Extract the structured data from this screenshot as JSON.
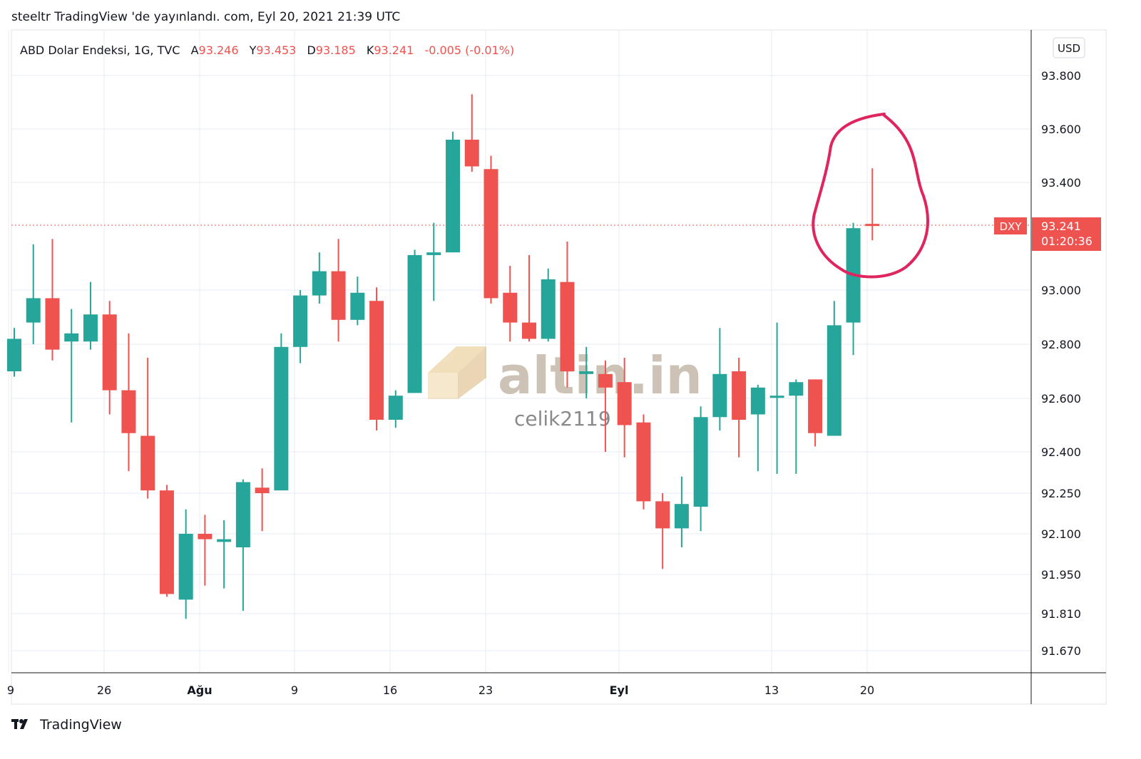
{
  "header": {
    "published": "steeltr TradingView 'de yayınlandı. com, Eyl 20, 2021 21:39 UTC"
  },
  "legend": {
    "symbol": "ABD Dolar Endeksi, 1G, TVC",
    "open_label": "A",
    "open": "93.246",
    "high_label": "Y",
    "high": "93.453",
    "low_label": "D",
    "low": "93.185",
    "close_label": "K",
    "close": "93.241",
    "change": "-0.005 (-0.01%)"
  },
  "currency_button": "USD",
  "price_tag": {
    "symbol": "DXY",
    "price": "93.241",
    "countdown": "01:20:36"
  },
  "watermark": {
    "logo": "altin.in",
    "user": "celik2119"
  },
  "footer": {
    "brand": "TradingView"
  },
  "colors": {
    "up": "#26a69a",
    "down": "#ef5350",
    "annotation": "#e0245e",
    "grid": "#e6eef4"
  },
  "chart_data": {
    "type": "candlestick",
    "title": "ABD Dolar Endeksi, 1G, TVC",
    "y_ticks": [
      93.8,
      93.6,
      93.4,
      93.0,
      92.8,
      92.6,
      92.4,
      92.25,
      92.1,
      91.95,
      91.81,
      91.67
    ],
    "y_tick_labels": [
      "93.800",
      "93.600",
      "93.400",
      "93.000",
      "92.800",
      "92.600",
      "92.400",
      "92.250",
      "92.100",
      "91.950",
      "91.810",
      "91.670"
    ],
    "x_tick_labels": [
      "9",
      "26",
      "Ağu",
      "9",
      "16",
      "23",
      "Eyl",
      "13",
      "20"
    ],
    "last_price": 93.241,
    "ohlc": [
      [
        "2021-07-19",
        92.7,
        92.86,
        92.68,
        92.82
      ],
      [
        "2021-07-20",
        92.88,
        93.17,
        92.8,
        92.97
      ],
      [
        "2021-07-21",
        92.97,
        93.19,
        92.74,
        92.78
      ],
      [
        "2021-07-22",
        92.81,
        92.93,
        92.51,
        92.84
      ],
      [
        "2021-07-23",
        92.81,
        93.03,
        92.78,
        92.91
      ],
      [
        "2021-07-26",
        92.91,
        92.96,
        92.54,
        92.63
      ],
      [
        "2021-07-27",
        92.63,
        92.84,
        92.33,
        92.47
      ],
      [
        "2021-07-28",
        92.46,
        92.75,
        92.23,
        92.26
      ],
      [
        "2021-07-29",
        92.26,
        92.28,
        91.87,
        91.88
      ],
      [
        "2021-07-30",
        91.86,
        92.19,
        91.79,
        92.1
      ],
      [
        "2021-08-02",
        92.1,
        92.17,
        91.91,
        92.08
      ],
      [
        "2021-08-03",
        92.07,
        92.15,
        91.9,
        92.08
      ],
      [
        "2021-08-04",
        92.05,
        92.3,
        91.82,
        92.29
      ],
      [
        "2021-08-05",
        92.27,
        92.34,
        92.11,
        92.25
      ],
      [
        "2021-08-06",
        92.26,
        92.84,
        92.26,
        92.79
      ],
      [
        "2021-08-09",
        92.79,
        93.0,
        92.73,
        92.98
      ],
      [
        "2021-08-10",
        92.98,
        93.14,
        92.95,
        93.07
      ],
      [
        "2021-08-11",
        93.07,
        93.19,
        92.81,
        92.89
      ],
      [
        "2021-08-12",
        92.89,
        93.05,
        92.87,
        92.99
      ],
      [
        "2021-08-13",
        92.96,
        93.01,
        92.48,
        92.52
      ],
      [
        "2021-08-16",
        92.52,
        92.63,
        92.49,
        92.61
      ],
      [
        "2021-08-17",
        92.62,
        93.15,
        92.62,
        93.13
      ],
      [
        "2021-08-18",
        93.13,
        93.25,
        92.96,
        93.14
      ],
      [
        "2021-08-19",
        93.14,
        93.59,
        93.14,
        93.56
      ],
      [
        "2021-08-20",
        93.56,
        93.73,
        93.44,
        93.46
      ],
      [
        "2021-08-23",
        93.45,
        93.5,
        92.95,
        92.97
      ],
      [
        "2021-08-24",
        92.99,
        93.09,
        92.81,
        92.88
      ],
      [
        "2021-08-25",
        92.88,
        93.13,
        92.81,
        92.82
      ],
      [
        "2021-08-26",
        92.82,
        93.08,
        92.81,
        93.04
      ],
      [
        "2021-08-27",
        93.03,
        93.18,
        92.64,
        92.7
      ],
      [
        "2021-08-30",
        92.69,
        92.79,
        92.6,
        92.7
      ],
      [
        "2021-08-31",
        92.69,
        92.74,
        92.4,
        92.64
      ],
      [
        "2021-09-01",
        92.66,
        92.75,
        92.38,
        92.5
      ],
      [
        "2021-09-02",
        92.51,
        92.54,
        92.19,
        92.22
      ],
      [
        "2021-09-03",
        92.22,
        92.25,
        91.97,
        92.12
      ],
      [
        "2021-09-06",
        92.12,
        92.31,
        92.05,
        92.21
      ],
      [
        "2021-09-07",
        92.2,
        92.57,
        92.11,
        92.53
      ],
      [
        "2021-09-08",
        92.53,
        92.86,
        92.48,
        92.69
      ],
      [
        "2021-09-09",
        92.7,
        92.75,
        92.38,
        92.52
      ],
      [
        "2021-09-10",
        92.54,
        92.65,
        92.33,
        92.64
      ],
      [
        "2021-09-13",
        92.61,
        92.88,
        92.32,
        92.61
      ],
      [
        "2021-09-14",
        92.61,
        92.67,
        92.32,
        92.66
      ],
      [
        "2021-09-15",
        92.67,
        92.67,
        92.42,
        92.47
      ],
      [
        "2021-09-16",
        92.46,
        92.96,
        92.46,
        92.87
      ],
      [
        "2021-09-17",
        92.88,
        93.25,
        92.76,
        93.23
      ],
      [
        "2021-09-20",
        93.246,
        93.453,
        93.185,
        93.241
      ]
    ]
  }
}
